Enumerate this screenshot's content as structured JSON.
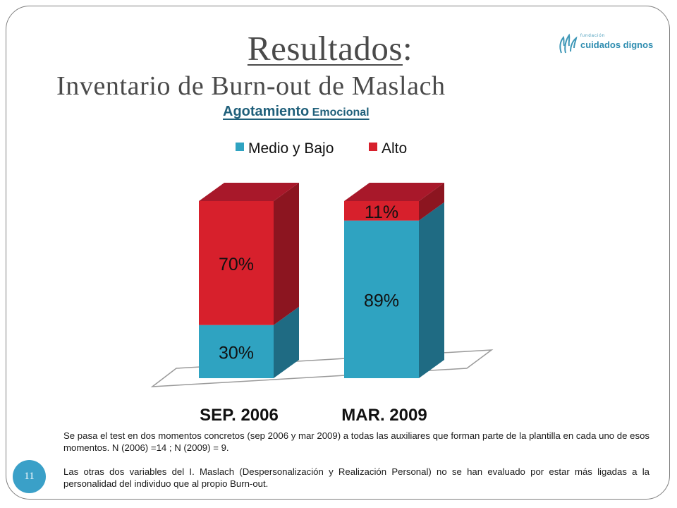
{
  "slide": {
    "title_main": "Resultados",
    "title_colon": ":",
    "subtitle": "Inventario de Burn-out de Maslach",
    "logo": {
      "small_text": "fundación",
      "text": "cuidados dignos",
      "icon": "hands-logo-icon"
    },
    "page_number": "11"
  },
  "chart_heading": {
    "big": "Agotamiento",
    "small": "Emocional"
  },
  "chart_data": {
    "type": "bar",
    "stacked": true,
    "three_d": true,
    "categories": [
      "SEP. 2006",
      "MAR. 2009"
    ],
    "series": [
      {
        "name": "Medio y Bajo",
        "values": [
          30,
          89
        ],
        "labels": [
          "30%",
          "89%"
        ],
        "color": "#2fa3c1",
        "side_color": "#1f6b83",
        "top_color": "#2fa3c1"
      },
      {
        "name": "Alto",
        "values": [
          70,
          11
        ],
        "labels": [
          "70%",
          "11%"
        ],
        "color": "#d7202c",
        "side_color": "#8c1520",
        "top_color": "#a8182a"
      }
    ],
    "ylim": [
      0,
      100
    ],
    "legend_position": "top",
    "grid": false
  },
  "notes": {
    "paragraph1": "Se pasa el test en dos momentos concretos (sep 2006 y mar 2009) a todas las auxiliares que forman parte de la plantilla en cada uno de esos momentos. N (2006) =14 ; N (2009) = 9.",
    "paragraph2": "Las otras dos variables del I. Maslach (Despersonalización y Realización Personal) no se han evaluado por estar más ligadas a la personalidad del individuo que al propio Burn-out."
  }
}
